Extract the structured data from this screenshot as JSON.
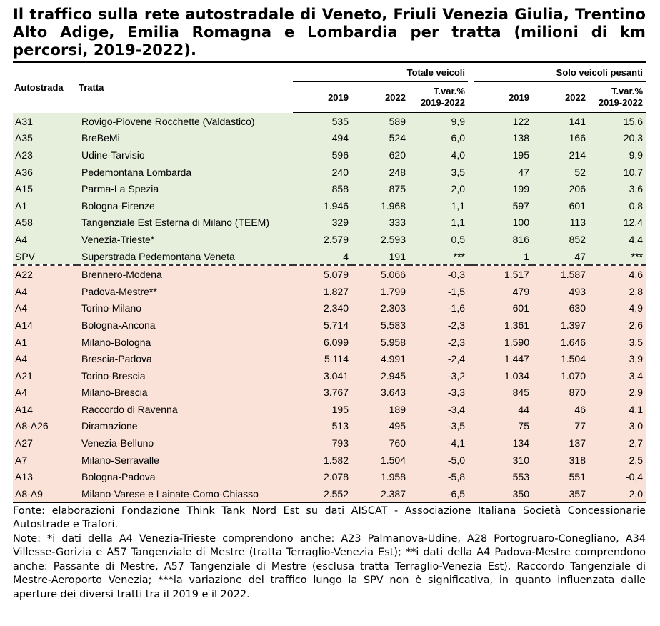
{
  "title": "Il traffico sulla rete autostradale di Veneto, Friuli Venezia Giulia, Trentino Alto Adige, Emilia Romagna e Lombardia per tratta (milioni di km percorsi, 2019-2022).",
  "header": {
    "autostrada": "Autostrada",
    "tratta": "Tratta",
    "group_total": "Totale veicoli",
    "group_heavy": "Solo veicoli pesanti",
    "y2019": "2019",
    "y2022": "2022",
    "tvar_line1": "T.var.%",
    "tvar_line2": "2019-2022"
  },
  "colors": {
    "green_band": "#e6efdc",
    "pink_band": "#fae2d9"
  },
  "rows": [
    {
      "code": "A31",
      "tratta": "Rovigo-Piovene Rocchette (Valdastico)",
      "t2019": "535",
      "t2022": "589",
      "tvar": "9,9",
      "p2019": "122",
      "p2022": "141",
      "pvar": "15,6",
      "band": "green"
    },
    {
      "code": "A35",
      "tratta": "BreBeMi",
      "t2019": "494",
      "t2022": "524",
      "tvar": "6,0",
      "p2019": "138",
      "p2022": "166",
      "pvar": "20,3",
      "band": "green"
    },
    {
      "code": "A23",
      "tratta": "Udine-Tarvisio",
      "t2019": "596",
      "t2022": "620",
      "tvar": "4,0",
      "p2019": "195",
      "p2022": "214",
      "pvar": "9,9",
      "band": "green"
    },
    {
      "code": "A36",
      "tratta": "Pedemontana Lombarda",
      "t2019": "240",
      "t2022": "248",
      "tvar": "3,5",
      "p2019": "47",
      "p2022": "52",
      "pvar": "10,7",
      "band": "green"
    },
    {
      "code": "A15",
      "tratta": "Parma-La Spezia",
      "t2019": "858",
      "t2022": "875",
      "tvar": "2,0",
      "p2019": "199",
      "p2022": "206",
      "pvar": "3,6",
      "band": "green"
    },
    {
      "code": "A1",
      "tratta": "Bologna-Firenze",
      "t2019": "1.946",
      "t2022": "1.968",
      "tvar": "1,1",
      "p2019": "597",
      "p2022": "601",
      "pvar": "0,8",
      "band": "green"
    },
    {
      "code": "A58",
      "tratta": "Tangenziale Est Esterna di Milano (TEEM)",
      "t2019": "329",
      "t2022": "333",
      "tvar": "1,1",
      "p2019": "100",
      "p2022": "113",
      "pvar": "12,4",
      "band": "green"
    },
    {
      "code": "A4",
      "tratta": "Venezia-Trieste*",
      "t2019": "2.579",
      "t2022": "2.593",
      "tvar": "0,5",
      "p2019": "816",
      "p2022": "852",
      "pvar": "4,4",
      "band": "green"
    },
    {
      "code": "SPV",
      "tratta": "Superstrada Pedemontana Veneta",
      "t2019": "4",
      "t2022": "191",
      "tvar": "***",
      "p2019": "1",
      "p2022": "47",
      "pvar": "***",
      "band": "green"
    },
    {
      "code": "A22",
      "tratta": "Brennero-Modena",
      "t2019": "5.079",
      "t2022": "5.066",
      "tvar": "-0,3",
      "p2019": "1.517",
      "p2022": "1.587",
      "pvar": "4,6",
      "band": "pink"
    },
    {
      "code": "A4",
      "tratta": "Padova-Mestre**",
      "t2019": "1.827",
      "t2022": "1.799",
      "tvar": "-1,5",
      "p2019": "479",
      "p2022": "493",
      "pvar": "2,8",
      "band": "pink"
    },
    {
      "code": "A4",
      "tratta": "Torino-Milano",
      "t2019": "2.340",
      "t2022": "2.303",
      "tvar": "-1,6",
      "p2019": "601",
      "p2022": "630",
      "pvar": "4,9",
      "band": "pink"
    },
    {
      "code": "A14",
      "tratta": "Bologna-Ancona",
      "t2019": "5.714",
      "t2022": "5.583",
      "tvar": "-2,3",
      "p2019": "1.361",
      "p2022": "1.397",
      "pvar": "2,6",
      "band": "pink"
    },
    {
      "code": "A1",
      "tratta": "Milano-Bologna",
      "t2019": "6.099",
      "t2022": "5.958",
      "tvar": "-2,3",
      "p2019": "1.590",
      "p2022": "1.646",
      "pvar": "3,5",
      "band": "pink"
    },
    {
      "code": "A4",
      "tratta": "Brescia-Padova",
      "t2019": "5.114",
      "t2022": "4.991",
      "tvar": "-2,4",
      "p2019": "1.447",
      "p2022": "1.504",
      "pvar": "3,9",
      "band": "pink"
    },
    {
      "code": "A21",
      "tratta": "Torino-Brescia",
      "t2019": "3.041",
      "t2022": "2.945",
      "tvar": "-3,2",
      "p2019": "1.034",
      "p2022": "1.070",
      "pvar": "3,4",
      "band": "pink"
    },
    {
      "code": "A4",
      "tratta": "Milano-Brescia",
      "t2019": "3.767",
      "t2022": "3.643",
      "tvar": "-3,3",
      "p2019": "845",
      "p2022": "870",
      "pvar": "2,9",
      "band": "pink"
    },
    {
      "code": "A14",
      "tratta": "Raccordo di Ravenna",
      "t2019": "195",
      "t2022": "189",
      "tvar": "-3,4",
      "p2019": "44",
      "p2022": "46",
      "pvar": "4,1",
      "band": "pink"
    },
    {
      "code": "A8-A26",
      "tratta": "Diramazione",
      "t2019": "513",
      "t2022": "495",
      "tvar": "-3,5",
      "p2019": "75",
      "p2022": "77",
      "pvar": "3,0",
      "band": "pink"
    },
    {
      "code": "A27",
      "tratta": "Venezia-Belluno",
      "t2019": "793",
      "t2022": "760",
      "tvar": "-4,1",
      "p2019": "134",
      "p2022": "137",
      "pvar": "2,7",
      "band": "pink"
    },
    {
      "code": "A7",
      "tratta": "Milano-Serravalle",
      "t2019": "1.582",
      "t2022": "1.504",
      "tvar": "-5,0",
      "p2019": "310",
      "p2022": "318",
      "pvar": "2,5",
      "band": "pink"
    },
    {
      "code": "A13",
      "tratta": "Bologna-Padova",
      "t2019": "2.078",
      "t2022": "1.958",
      "tvar": "-5,8",
      "p2019": "553",
      "p2022": "551",
      "pvar": "-0,4",
      "band": "pink"
    },
    {
      "code": "A8-A9",
      "tratta": "Milano-Varese e Lainate-Como-Chiasso",
      "t2019": "2.552",
      "t2022": "2.387",
      "tvar": "-6,5",
      "p2019": "350",
      "p2022": "357",
      "pvar": "2,0",
      "band": "pink"
    }
  ],
  "footer": {
    "source": "Fonte: elaborazioni Fondazione Think Tank Nord Est su dati AISCAT - Associazione Italiana Società Concessionarie Autostrade e Trafori.",
    "notes": "Note: *i dati della A4 Venezia-Trieste comprendono anche: A23 Palmanova-Udine, A28 Portogruaro-Conegliano, A34 Villesse-Gorizia e A57 Tangenziale di Mestre (tratta Terraglio-Venezia Est); **i dati della A4 Padova-Mestre comprendono anche: Passante di Mestre, A57 Tangenziale di Mestre (esclusa tratta Terraglio-Venezia Est), Raccordo Tangenziale di Mestre-Aeroporto Venezia; ***la variazione del traffico lungo la SPV non è significativa, in quanto influenzata dalle aperture dei diversi tratti tra il 2019 e il 2022."
  }
}
